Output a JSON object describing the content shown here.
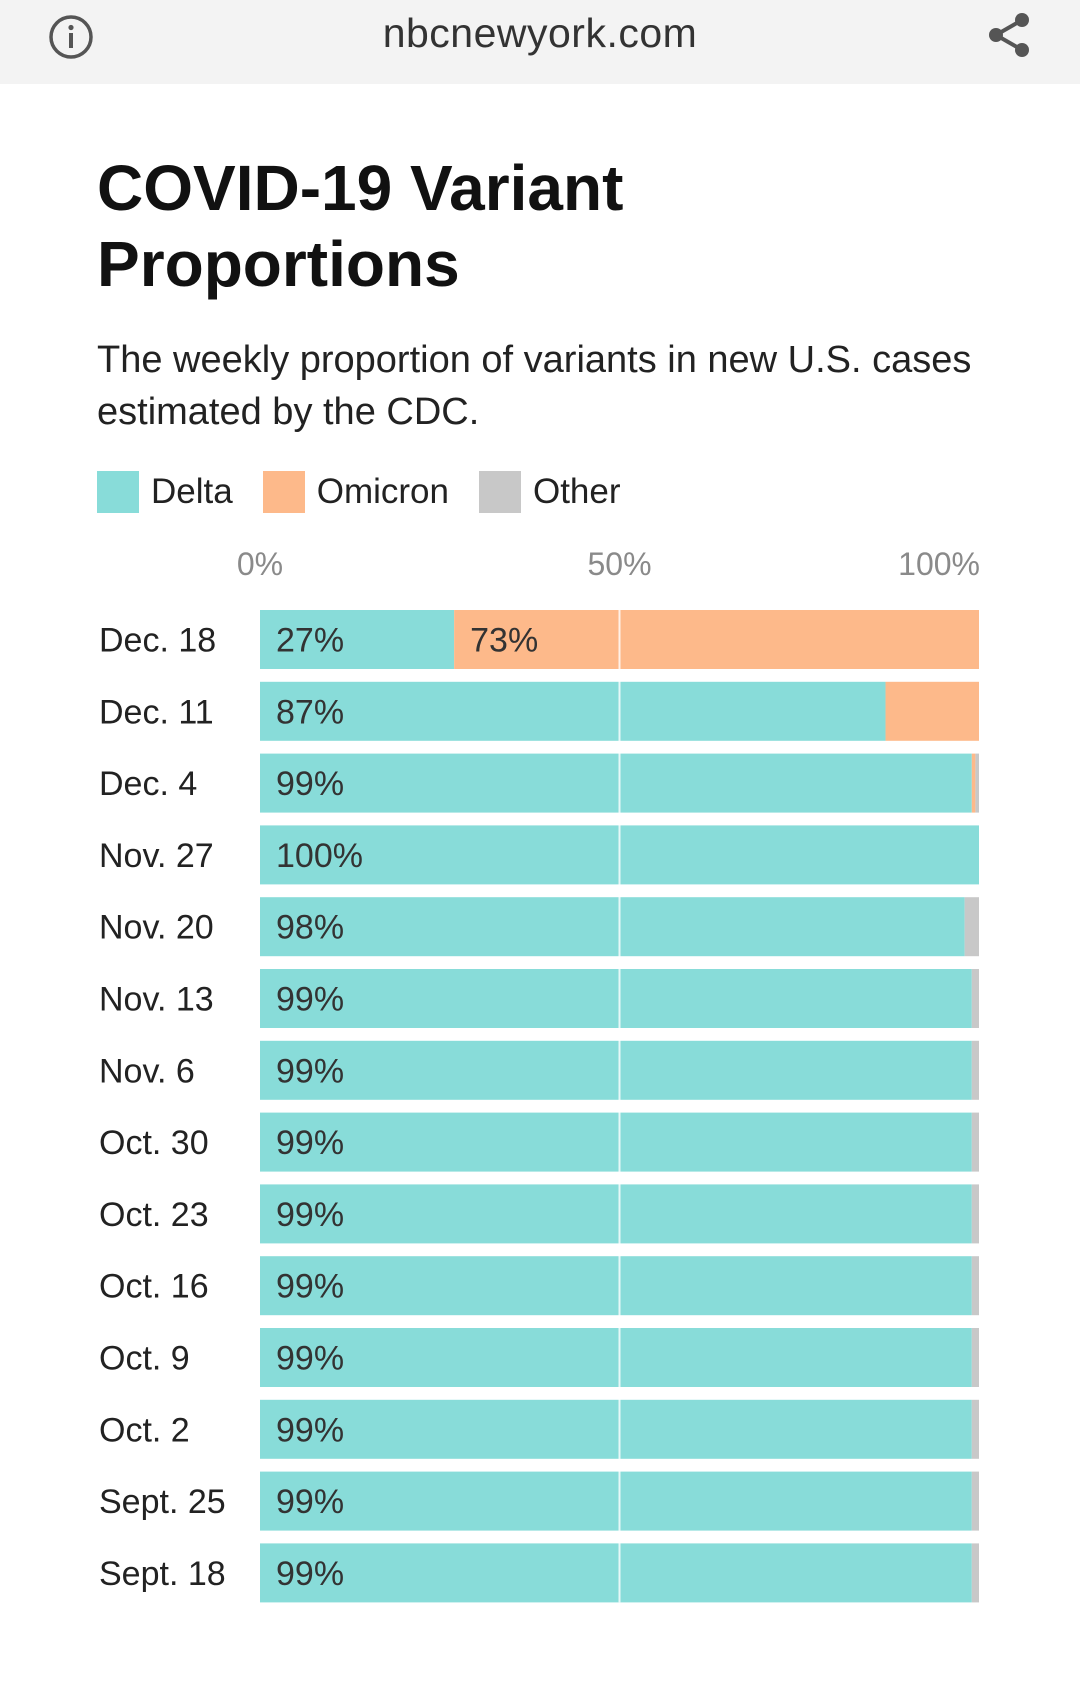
{
  "browser": {
    "domain": "nbcnewyork.com",
    "info_icon": "info-icon",
    "share_icon": "share-icon"
  },
  "colors": {
    "delta": "#88dcd9",
    "omicron": "#fdb98a",
    "other": "#c8c8c8"
  },
  "chart_data": {
    "type": "bar",
    "orientation": "horizontal",
    "stacked": true,
    "title": "COVID-19 Variant Proportions",
    "subtitle": "The weekly proportion of variants in new U.S. cases estimated by the CDC.",
    "xlim": [
      0,
      100
    ],
    "x_ticks": [
      "0%",
      "50%",
      "100%"
    ],
    "legend_position": "top-left",
    "grid": true,
    "categories": [
      "Dec. 18",
      "Dec. 11",
      "Dec. 4",
      "Nov. 27",
      "Nov. 20",
      "Nov. 13",
      "Nov. 6",
      "Oct. 30",
      "Oct. 23",
      "Oct. 16",
      "Oct. 9",
      "Oct. 2",
      "Sept. 25",
      "Sept. 18"
    ],
    "series": [
      {
        "name": "Delta",
        "values": [
          27,
          87,
          99,
          100,
          98,
          99,
          99,
          99,
          99,
          99,
          99,
          99,
          99,
          99
        ]
      },
      {
        "name": "Omicron",
        "values": [
          73,
          13,
          0.5,
          0,
          0,
          0,
          0,
          0,
          0,
          0,
          0,
          0,
          0,
          0
        ]
      },
      {
        "name": "Other",
        "values": [
          0,
          0,
          0.5,
          0,
          2,
          1,
          1,
          1,
          1,
          1,
          1,
          1,
          1,
          1
        ]
      }
    ],
    "data_labels": [
      [
        "27%",
        "73%"
      ],
      [
        "87%"
      ],
      [
        "99%"
      ],
      [
        "100%"
      ],
      [
        "98%"
      ],
      [
        "99%"
      ],
      [
        "99%"
      ],
      [
        "99%"
      ],
      [
        "99%"
      ],
      [
        "99%"
      ],
      [
        "99%"
      ],
      [
        "99%"
      ],
      [
        "99%"
      ],
      [
        "99%"
      ]
    ]
  }
}
